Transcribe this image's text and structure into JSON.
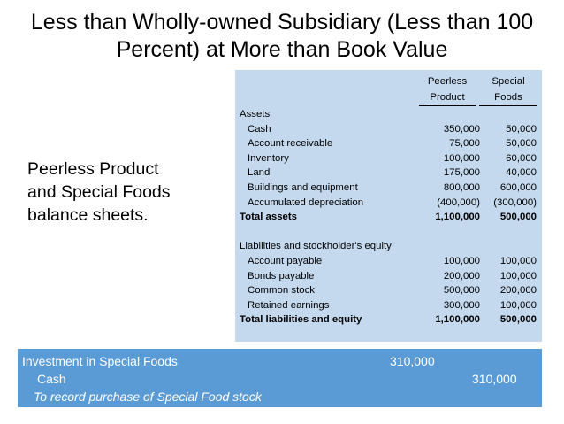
{
  "slide": {
    "title": "Less than Wholly-owned Subsidiary (Less than 100 Percent) at More than Book Value",
    "subtitle": "Peerless Product\nand Special Foods\nbalance sheets."
  },
  "balance_sheet": {
    "col1_header": [
      "Peerless",
      "Product"
    ],
    "col2_header": [
      "Special",
      "Foods"
    ],
    "rows": [
      {
        "label": "Assets",
        "v1": "",
        "v2": ""
      },
      {
        "label": "Cash",
        "v1": "350,000",
        "v2": "50,000"
      },
      {
        "label": "Account receivable",
        "v1": "75,000",
        "v2": "50,000"
      },
      {
        "label": "Inventory",
        "v1": "100,000",
        "v2": "60,000"
      },
      {
        "label": "Land",
        "v1": "175,000",
        "v2": "40,000"
      },
      {
        "label": "Buildings and equipment",
        "v1": "800,000",
        "v2": "600,000"
      },
      {
        "label": "Accumulated depreciation",
        "v1": "(400,000)",
        "v2": "(300,000)"
      },
      {
        "label": "Total assets",
        "v1": "1,100,000",
        "v2": "500,000"
      },
      {
        "label": "",
        "v1": "",
        "v2": ""
      },
      {
        "label": "Liabilities and stockholder's equity",
        "v1": "",
        "v2": ""
      },
      {
        "label": "Account payable",
        "v1": "100,000",
        "v2": "100,000"
      },
      {
        "label": "Bonds payable",
        "v1": "200,000",
        "v2": "100,000"
      },
      {
        "label": "Common stock",
        "v1": "500,000",
        "v2": "200,000"
      },
      {
        "label": "Retained earnings",
        "v1": "300,000",
        "v2": "100,000"
      },
      {
        "label": "Total liabilities and equity",
        "v1": "1,100,000",
        "v2": "500,000"
      }
    ]
  },
  "journal_entry": {
    "debit_account": "Investment in Special Foods",
    "debit_amount": "310,000",
    "credit_account": "Cash",
    "credit_amount": "310,000",
    "memo": "To record purchase of Special Food stock"
  }
}
